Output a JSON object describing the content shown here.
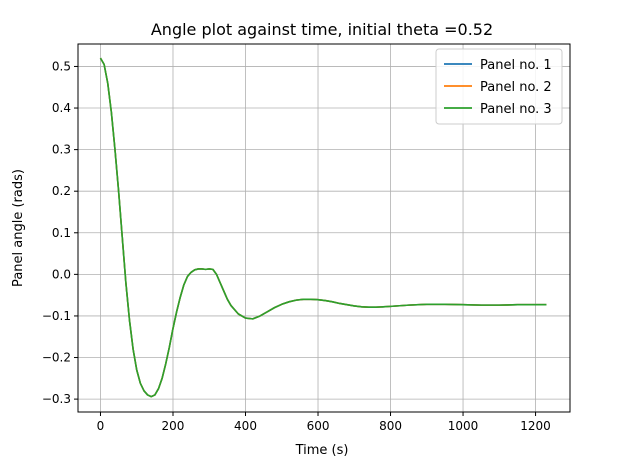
{
  "chart_data": {
    "type": "line",
    "title": "Angle plot against time, initial theta =0.52",
    "xlabel": "Time (s)",
    "ylabel": "Panel angle (rads)",
    "xlim": [
      -62,
      1295
    ],
    "ylim": [
      -0.331,
      0.554
    ],
    "xticks": [
      0,
      200,
      400,
      600,
      800,
      1000,
      1200
    ],
    "yticks": [
      -0.3,
      -0.2,
      -0.1,
      0.0,
      0.1,
      0.2,
      0.3,
      0.4,
      0.5
    ],
    "ytick_labels": [
      "−0.3",
      "−0.2",
      "−0.1",
      "0.0",
      "0.1",
      "0.2",
      "0.3",
      "0.4",
      "0.5"
    ],
    "grid": true,
    "legend_position": "top-right",
    "series": [
      {
        "name": "Panel no. 1",
        "color": "#1f77b4",
        "x": [
          0,
          10,
          20,
          30,
          40,
          50,
          60,
          70,
          80,
          90,
          100,
          110,
          120,
          130,
          140,
          150,
          160,
          170,
          180,
          190,
          200,
          210,
          220,
          230,
          240,
          250,
          260,
          270,
          280,
          290,
          300,
          310,
          320,
          330,
          340,
          350,
          360,
          380,
          400,
          420,
          440,
          460,
          480,
          500,
          520,
          540,
          560,
          580,
          600,
          620,
          640,
          660,
          680,
          700,
          720,
          740,
          760,
          780,
          800,
          850,
          900,
          950,
          1000,
          1050,
          1100,
          1150,
          1200,
          1230
        ],
        "y": [
          0.52,
          0.505,
          0.46,
          0.39,
          0.3,
          0.2,
          0.09,
          -0.02,
          -0.11,
          -0.18,
          -0.23,
          -0.262,
          -0.28,
          -0.29,
          -0.294,
          -0.29,
          -0.275,
          -0.25,
          -0.215,
          -0.175,
          -0.13,
          -0.09,
          -0.055,
          -0.025,
          -0.005,
          0.005,
          0.011,
          0.013,
          0.013,
          0.012,
          0.013,
          0.012,
          0.0,
          -0.02,
          -0.04,
          -0.06,
          -0.075,
          -0.095,
          -0.105,
          -0.107,
          -0.1,
          -0.09,
          -0.08,
          -0.072,
          -0.066,
          -0.062,
          -0.06,
          -0.06,
          -0.061,
          -0.063,
          -0.066,
          -0.07,
          -0.073,
          -0.076,
          -0.078,
          -0.079,
          -0.079,
          -0.078,
          -0.077,
          -0.074,
          -0.072,
          -0.072,
          -0.073,
          -0.074,
          -0.074,
          -0.073,
          -0.073,
          -0.073
        ]
      },
      {
        "name": "Panel no. 2",
        "color": "#ff7f0e",
        "x": [
          0,
          10,
          20,
          30,
          40,
          50,
          60,
          70,
          80,
          90,
          100,
          110,
          120,
          130,
          140,
          150,
          160,
          170,
          180,
          190,
          200,
          210,
          220,
          230,
          240,
          250,
          260,
          270,
          280,
          290,
          300,
          310,
          320,
          330,
          340,
          350,
          360,
          380,
          400,
          420,
          440,
          460,
          480,
          500,
          520,
          540,
          560,
          580,
          600,
          620,
          640,
          660,
          680,
          700,
          720,
          740,
          760,
          780,
          800,
          850,
          900,
          950,
          1000,
          1050,
          1100,
          1150,
          1200,
          1230
        ],
        "y": [
          0.52,
          0.505,
          0.46,
          0.39,
          0.3,
          0.2,
          0.09,
          -0.02,
          -0.11,
          -0.18,
          -0.23,
          -0.262,
          -0.28,
          -0.29,
          -0.294,
          -0.29,
          -0.275,
          -0.25,
          -0.215,
          -0.175,
          -0.13,
          -0.09,
          -0.055,
          -0.025,
          -0.005,
          0.005,
          0.011,
          0.013,
          0.013,
          0.012,
          0.013,
          0.012,
          0.0,
          -0.02,
          -0.04,
          -0.06,
          -0.075,
          -0.095,
          -0.105,
          -0.107,
          -0.1,
          -0.09,
          -0.08,
          -0.072,
          -0.066,
          -0.062,
          -0.06,
          -0.06,
          -0.061,
          -0.063,
          -0.066,
          -0.07,
          -0.073,
          -0.076,
          -0.078,
          -0.079,
          -0.079,
          -0.078,
          -0.077,
          -0.074,
          -0.072,
          -0.072,
          -0.073,
          -0.074,
          -0.074,
          -0.073,
          -0.073,
          -0.073
        ]
      },
      {
        "name": "Panel no. 3",
        "color": "#2ca02c",
        "x": [
          0,
          10,
          20,
          30,
          40,
          50,
          60,
          70,
          80,
          90,
          100,
          110,
          120,
          130,
          140,
          150,
          160,
          170,
          180,
          190,
          200,
          210,
          220,
          230,
          240,
          250,
          260,
          270,
          280,
          290,
          300,
          310,
          320,
          330,
          340,
          350,
          360,
          380,
          400,
          420,
          440,
          460,
          480,
          500,
          520,
          540,
          560,
          580,
          600,
          620,
          640,
          660,
          680,
          700,
          720,
          740,
          760,
          780,
          800,
          850,
          900,
          950,
          1000,
          1050,
          1100,
          1150,
          1200,
          1230
        ],
        "y": [
          0.52,
          0.505,
          0.46,
          0.39,
          0.3,
          0.2,
          0.09,
          -0.02,
          -0.11,
          -0.18,
          -0.23,
          -0.262,
          -0.28,
          -0.29,
          -0.294,
          -0.29,
          -0.275,
          -0.25,
          -0.215,
          -0.175,
          -0.13,
          -0.09,
          -0.055,
          -0.025,
          -0.005,
          0.005,
          0.011,
          0.013,
          0.013,
          0.012,
          0.013,
          0.012,
          0.0,
          -0.02,
          -0.04,
          -0.06,
          -0.075,
          -0.095,
          -0.105,
          -0.107,
          -0.1,
          -0.09,
          -0.08,
          -0.072,
          -0.066,
          -0.062,
          -0.06,
          -0.06,
          -0.061,
          -0.063,
          -0.066,
          -0.07,
          -0.073,
          -0.076,
          -0.078,
          -0.079,
          -0.079,
          -0.078,
          -0.077,
          -0.074,
          -0.072,
          -0.072,
          -0.073,
          -0.074,
          -0.074,
          -0.073,
          -0.073,
          -0.073
        ]
      }
    ]
  }
}
